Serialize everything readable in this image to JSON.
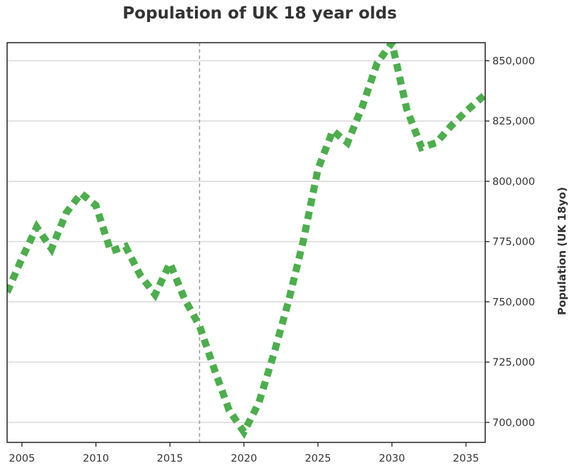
{
  "chart_data": {
    "type": "line",
    "title": "Population of UK 18 year olds",
    "ylabel": "Population (UK 18yo)",
    "xlabel": "",
    "xlim": [
      2004,
      2036.3
    ],
    "ylim": [
      691700,
      857500
    ],
    "x_ticks": [
      2005,
      2010,
      2015,
      2020,
      2025,
      2030,
      2035
    ],
    "x_tick_labels": [
      "2005",
      "2010",
      "2015",
      "2020",
      "2025",
      "2030",
      "2035"
    ],
    "y_ticks": [
      700000,
      725000,
      750000,
      775000,
      800000,
      825000,
      850000
    ],
    "y_tick_labels": [
      "700,000",
      "725,000",
      "750,000",
      "775,000",
      "800,000",
      "825,000",
      "850,000"
    ],
    "y_axis_side": "right",
    "grid": "horizontal",
    "reference_line_x": 2017,
    "series": [
      {
        "color": "#4cae4c",
        "style": "dotted",
        "x": [
          2004,
          2005,
          2006,
          2007,
          2008,
          2009,
          2010,
          2011,
          2012,
          2013,
          2014,
          2015,
          2016,
          2017,
          2018,
          2019,
          2020,
          2021,
          2022,
          2023,
          2024,
          2025,
          2026,
          2027,
          2028,
          2029,
          2030,
          2031,
          2032,
          2033,
          2034,
          2035,
          2036.3
        ],
        "values": [
          754000,
          768000,
          781000,
          772000,
          787000,
          795000,
          790000,
          771000,
          773000,
          761000,
          753000,
          766000,
          751000,
          740000,
          722000,
          705000,
          696000,
          708000,
          728000,
          750000,
          775000,
          805000,
          821000,
          816000,
          831000,
          849000,
          857500,
          830000,
          814000,
          816000,
          823000,
          829000,
          836000
        ]
      }
    ]
  }
}
